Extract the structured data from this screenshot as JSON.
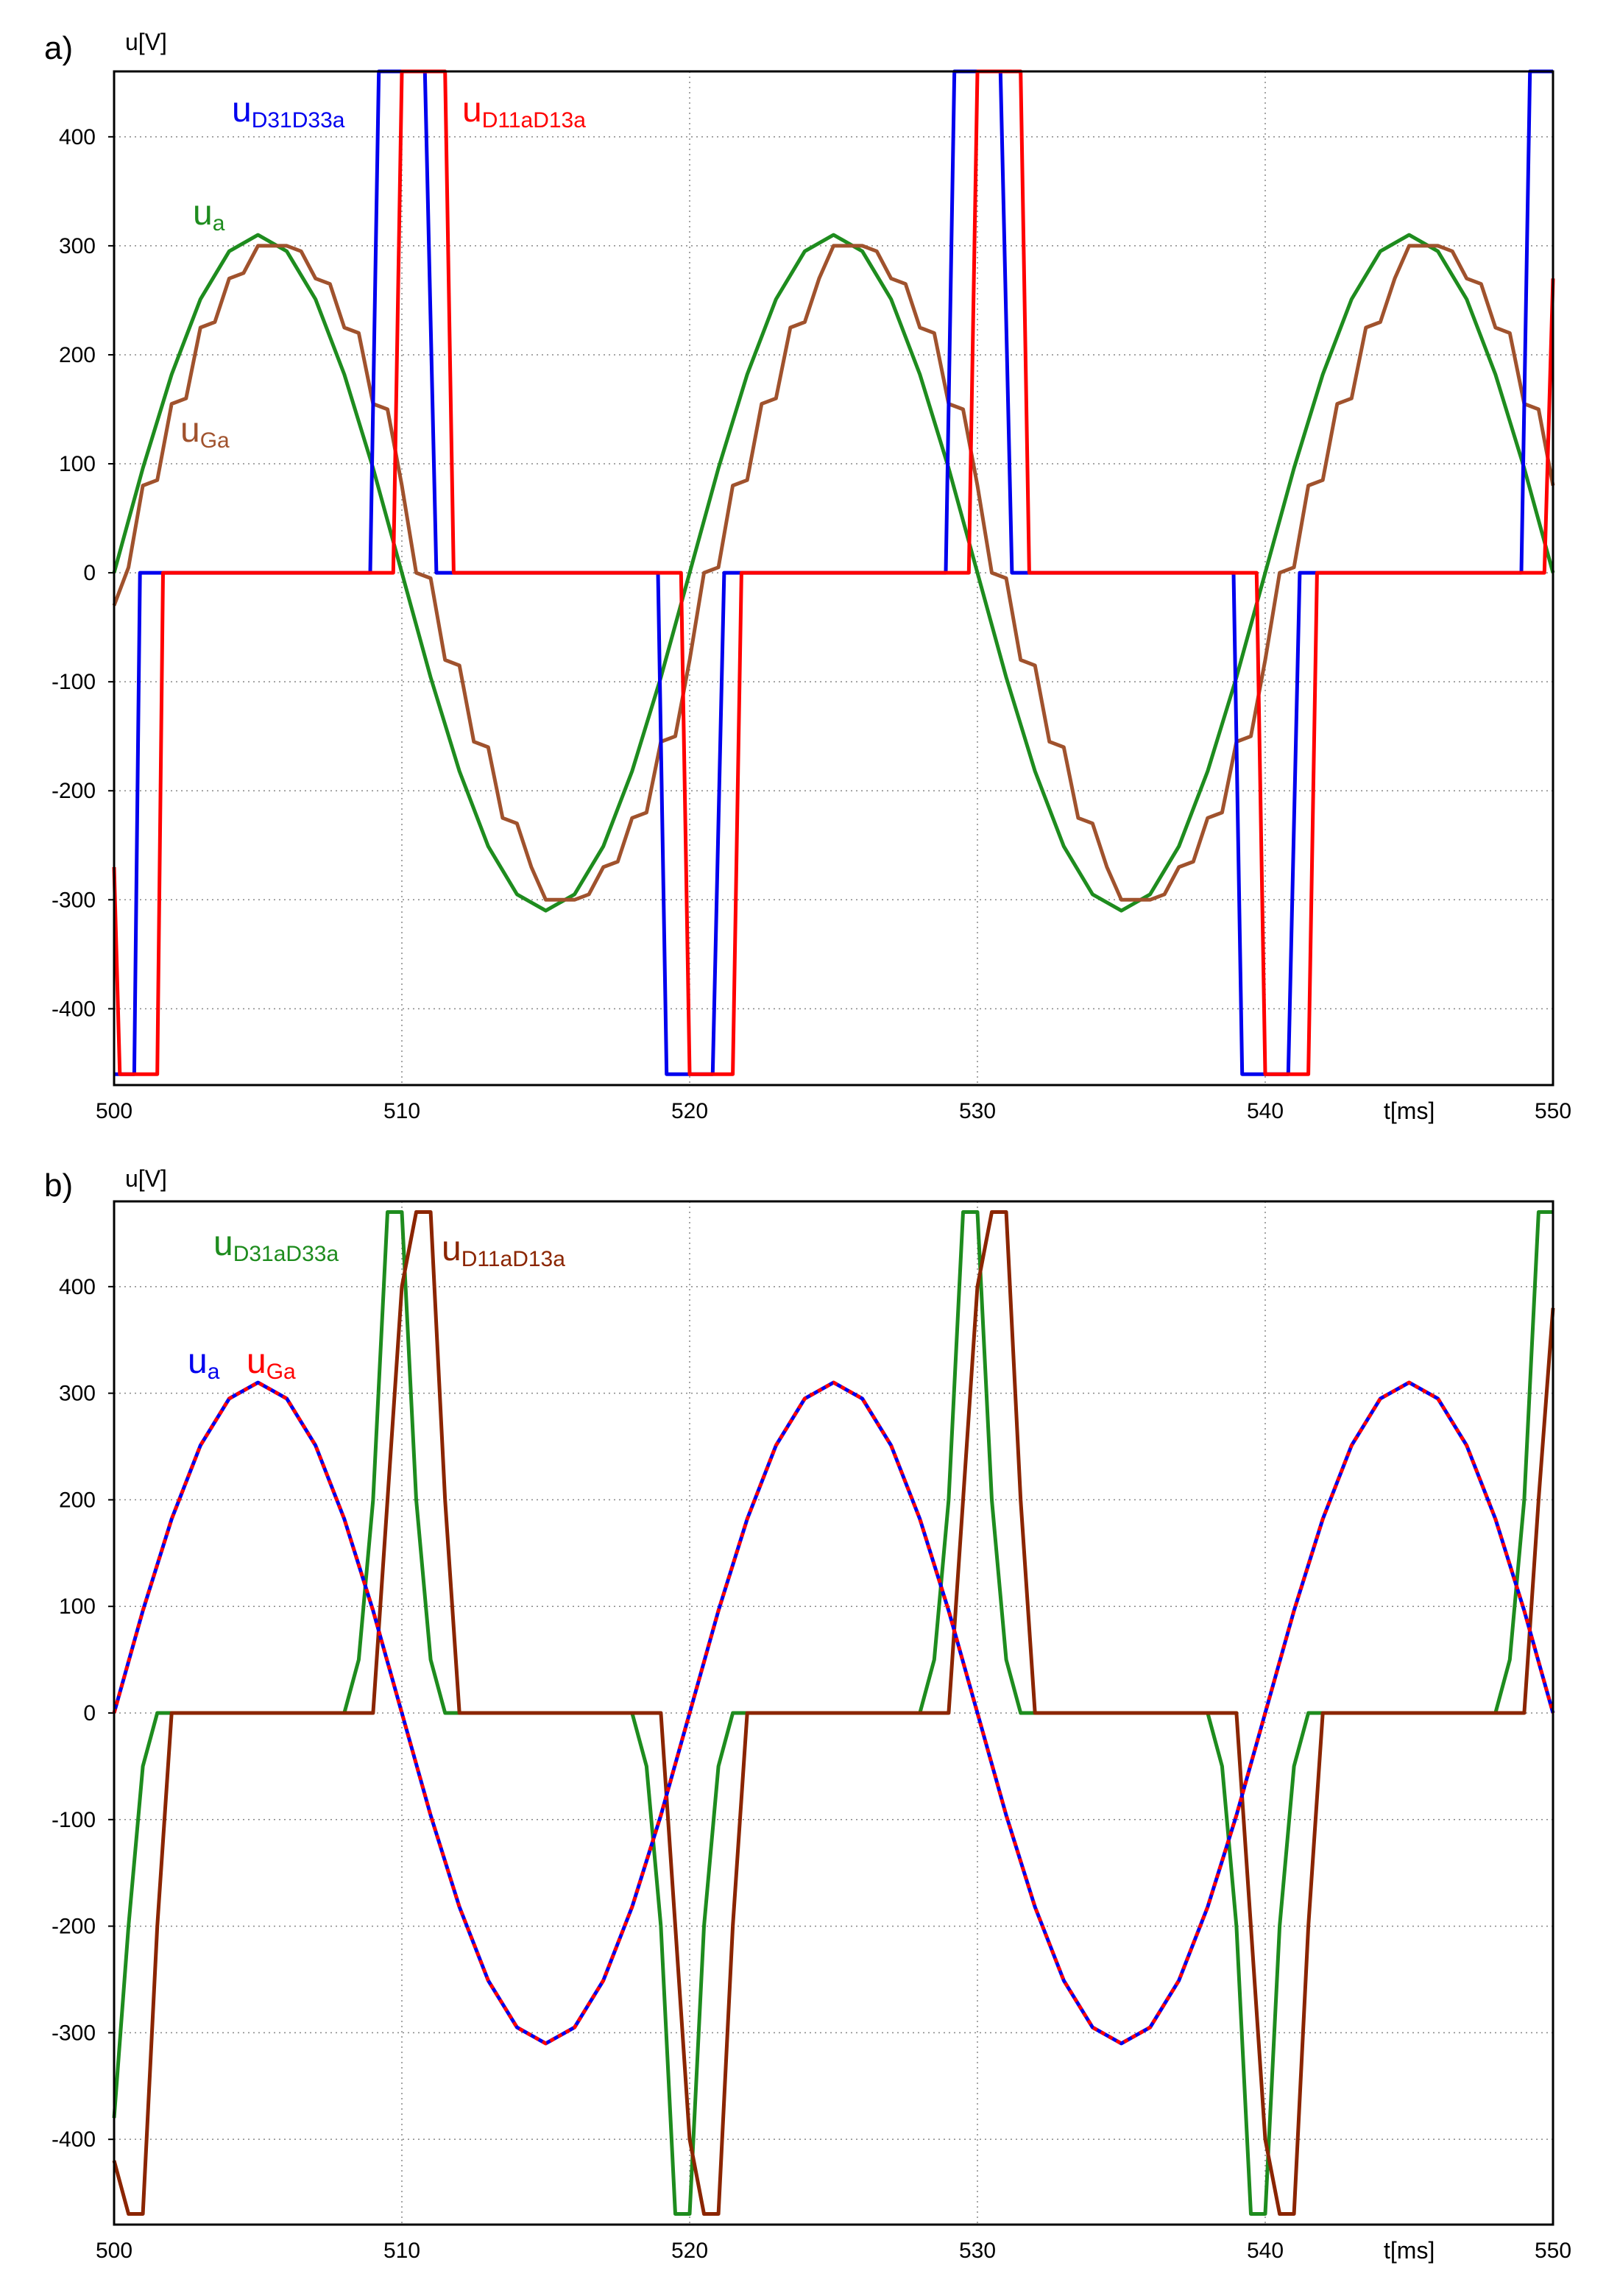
{
  "chart_data": [
    {
      "panel_label": "a)",
      "type": "line",
      "xlabel": "t[ms]",
      "ylabel": "u[V]",
      "xlim": [
        500,
        550
      ],
      "ylim": [
        -470,
        460
      ],
      "xticks": [
        500,
        510,
        520,
        530,
        540,
        550
      ],
      "yticks": [
        -400,
        -300,
        -200,
        -100,
        0,
        100,
        200,
        300,
        400
      ],
      "grid": true,
      "series": [
        {
          "key": "ua",
          "label_main": "u",
          "label_sub": "a",
          "color": "#1e8c1e",
          "description": "sinusoid amplitude 310 V, period 20 ms, zero at 500 ms rising",
          "x": [
            500,
            501,
            502,
            503,
            504,
            505,
            506,
            507,
            508,
            509,
            510,
            511,
            512,
            513,
            514,
            515,
            516,
            517,
            518,
            519,
            520,
            521,
            522,
            523,
            524,
            525,
            526,
            527,
            528,
            529,
            530,
            531,
            532,
            533,
            534,
            535,
            536,
            537,
            538,
            539,
            540,
            541,
            542,
            543,
            544,
            545,
            546,
            547,
            548,
            549,
            550
          ],
          "y": [
            0,
            96,
            182,
            251,
            295,
            310,
            295,
            251,
            182,
            96,
            0,
            -96,
            -182,
            -251,
            -295,
            -310,
            -295,
            -251,
            -182,
            -96,
            0,
            96,
            182,
            251,
            295,
            310,
            295,
            251,
            182,
            96,
            0,
            -96,
            -182,
            -251,
            -295,
            -310,
            -295,
            -251,
            -182,
            -96,
            0,
            96,
            182,
            251,
            295,
            310,
            295,
            251,
            182,
            96,
            0
          ]
        },
        {
          "key": "uGa",
          "label_main": "u",
          "label_sub": "Ga",
          "color": "#a0522d",
          "description": "staircase approximation of the sinusoid",
          "x": [
            500,
            500.5,
            501,
            501.5,
            502,
            502.5,
            503,
            503.5,
            504,
            504.5,
            505,
            505.5,
            506,
            506.5,
            507,
            507.5,
            508,
            508.5,
            509,
            509.5,
            510,
            510.5,
            511,
            511.5,
            512,
            512.5,
            513,
            513.5,
            514,
            514.5,
            515,
            515.5,
            516,
            516.5,
            517,
            517.5,
            518,
            518.5,
            519,
            519.5,
            520,
            520.5,
            521,
            521.5,
            522,
            522.5,
            523,
            523.5,
            524,
            524.5,
            525,
            525.5,
            526,
            526.5,
            527,
            527.5,
            528,
            528.5,
            529,
            529.5,
            530,
            530.5,
            531,
            531.5,
            532,
            532.5,
            533,
            533.5,
            534,
            534.5,
            535,
            535.5,
            536,
            536.5,
            537,
            537.5,
            538,
            538.5,
            539,
            539.5,
            540,
            540.5,
            541,
            541.5,
            542,
            542.5,
            543,
            543.5,
            544,
            544.5,
            545,
            545.5,
            546,
            546.5,
            547,
            547.5,
            548,
            548.5,
            549,
            549.5,
            550
          ],
          "y": [
            -30,
            5,
            80,
            85,
            155,
            160,
            225,
            230,
            270,
            275,
            300,
            300,
            300,
            295,
            270,
            265,
            225,
            220,
            155,
            150,
            80,
            0,
            -5,
            -80,
            -85,
            -155,
            -160,
            -225,
            -230,
            -270,
            -300,
            -300,
            -300,
            -295,
            -270,
            -265,
            -225,
            -220,
            -155,
            -150,
            -80,
            0,
            5,
            80,
            85,
            155,
            160,
            225,
            230,
            270,
            300,
            300,
            300,
            295,
            270,
            265,
            225,
            220,
            155,
            150,
            80,
            0,
            -5,
            -80,
            -85,
            -155,
            -160,
            -225,
            -230,
            -270,
            -300,
            -300,
            -300,
            -295,
            -270,
            -265,
            -225,
            -220,
            -155,
            -150,
            -80,
            0,
            5,
            80,
            85,
            155,
            160,
            225,
            230,
            270,
            300,
            300,
            300,
            295,
            270,
            265,
            225,
            220,
            155,
            150,
            80
          ]
        },
        {
          "key": "uD31D33a",
          "label_main": "u",
          "label_sub": "D31D33a",
          "color": "#0000ee",
          "description": "pulses reaching about +460 V near 509-511 ms and -460 V near 500-501 ms",
          "x": [
            500,
            500.3,
            500.7,
            500.9,
            501.3,
            508.9,
            509.2,
            509.5,
            510.5,
            510.8,
            511.2,
            518.9,
            519.2,
            519.5,
            520.5,
            520.8,
            521.2,
            528.9,
            529.2,
            529.5,
            530.5,
            530.8,
            531.2,
            538.9,
            539.2,
            539.5,
            540.5,
            540.8,
            541.2,
            548.9,
            549.2,
            549.5,
            550
          ],
          "y": [
            -460,
            -460,
            -460,
            0,
            0,
            0,
            460,
            460,
            460,
            460,
            0,
            0,
            -460,
            -460,
            -460,
            -460,
            0,
            0,
            460,
            460,
            460,
            460,
            0,
            0,
            -460,
            -460,
            -460,
            -460,
            0,
            0,
            460,
            460,
            460
          ]
        },
        {
          "key": "uD11aD13a",
          "label_main": "u",
          "label_sub": "D11aD13a",
          "color": "#ff0000",
          "description": "pulses reaching about +460 V near 510-512 ms and -460 V near 500-502 ms",
          "x": [
            500,
            500.2,
            501.5,
            501.7,
            509.7,
            510.0,
            511.5,
            511.8,
            519.7,
            520.0,
            521.5,
            521.8,
            529.7,
            530.0,
            531.5,
            531.8,
            539.7,
            540.0,
            541.5,
            541.8,
            549.7,
            550
          ],
          "y": [
            -270,
            -460,
            -460,
            0,
            0,
            460,
            460,
            0,
            0,
            -460,
            -460,
            0,
            0,
            460,
            460,
            0,
            0,
            -460,
            -460,
            0,
            0,
            270
          ]
        }
      ]
    },
    {
      "panel_label": "b)",
      "type": "line",
      "xlabel": "t[ms]",
      "ylabel": "u[V]",
      "xlim": [
        500,
        550
      ],
      "ylim": [
        -480,
        480
      ],
      "xticks": [
        500,
        510,
        520,
        530,
        540,
        550
      ],
      "yticks": [
        -400,
        -300,
        -200,
        -100,
        0,
        100,
        200,
        300,
        400
      ],
      "grid": true,
      "series": [
        {
          "key": "uD31aD33a",
          "label_main": "u",
          "label_sub": "D31aD33a",
          "color": "#1e8c1e",
          "description": "triangular-ish pulses peaking near +470 V at ~509.5 ms and -470 V at ~500.5 ms",
          "x": [
            500,
            500.5,
            501,
            501.5,
            508,
            508.5,
            509,
            509.5,
            510,
            510.5,
            511,
            511.5,
            518,
            518.5,
            519,
            519.5,
            520,
            520.5,
            521,
            521.5,
            528,
            528.5,
            529,
            529.5,
            530,
            530.5,
            531,
            531.5,
            538,
            538.5,
            539,
            539.5,
            540,
            540.5,
            541,
            541.5,
            548,
            548.5,
            549,
            549.5,
            550
          ],
          "y": [
            -380,
            -200,
            -50,
            0,
            0,
            50,
            200,
            470,
            470,
            200,
            50,
            0,
            0,
            -50,
            -200,
            -470,
            -470,
            -200,
            -50,
            0,
            0,
            50,
            200,
            470,
            470,
            200,
            50,
            0,
            0,
            -50,
            -200,
            -470,
            -470,
            -200,
            -50,
            0,
            0,
            50,
            200,
            470,
            470
          ]
        },
        {
          "key": "uD11aD13a",
          "label_main": "u",
          "label_sub": "D11aD13a",
          "color": "#8b2500",
          "description": "triangular-ish pulses peaking near +470 V at ~510.5 ms and -470 V at ~501 ms",
          "x": [
            500,
            500.5,
            501,
            501.5,
            502,
            509,
            509.5,
            510,
            510.5,
            511,
            511.5,
            512,
            519,
            519.5,
            520,
            520.5,
            521,
            521.5,
            522,
            529,
            529.5,
            530,
            530.5,
            531,
            531.5,
            532,
            539,
            539.5,
            540,
            540.5,
            541,
            541.5,
            542,
            549,
            549.5,
            550
          ],
          "y": [
            -420,
            -470,
            -470,
            -200,
            0,
            0,
            200,
            400,
            470,
            470,
            200,
            0,
            0,
            -200,
            -400,
            -470,
            -470,
            -200,
            0,
            0,
            200,
            400,
            470,
            470,
            200,
            0,
            0,
            -200,
            -400,
            -470,
            -470,
            -200,
            0,
            0,
            200,
            380
          ]
        },
        {
          "key": "ua",
          "label_main": "u",
          "label_sub": "a",
          "color": "#0000ee",
          "dashed": false,
          "description": "sinusoid amplitude 310 V, period 20 ms",
          "x": [
            500,
            501,
            502,
            503,
            504,
            505,
            506,
            507,
            508,
            509,
            510,
            511,
            512,
            513,
            514,
            515,
            516,
            517,
            518,
            519,
            520,
            521,
            522,
            523,
            524,
            525,
            526,
            527,
            528,
            529,
            530,
            531,
            532,
            533,
            534,
            535,
            536,
            537,
            538,
            539,
            540,
            541,
            542,
            543,
            544,
            545,
            546,
            547,
            548,
            549,
            550
          ],
          "y": [
            0,
            96,
            182,
            251,
            295,
            310,
            295,
            251,
            182,
            96,
            0,
            -96,
            -182,
            -251,
            -295,
            -310,
            -295,
            -251,
            -182,
            -96,
            0,
            96,
            182,
            251,
            295,
            310,
            295,
            251,
            182,
            96,
            0,
            -96,
            -182,
            -251,
            -295,
            -310,
            -295,
            -251,
            -182,
            -96,
            0,
            96,
            182,
            251,
            295,
            310,
            295,
            251,
            182,
            96,
            0
          ]
        },
        {
          "key": "uGa",
          "label_main": "u",
          "label_sub": "Ga",
          "color": "#ff0000",
          "dashed": true,
          "description": "overlays u_a closely (dashed red over blue)",
          "x": [
            500,
            501,
            502,
            503,
            504,
            505,
            506,
            507,
            508,
            509,
            510,
            511,
            512,
            513,
            514,
            515,
            516,
            517,
            518,
            519,
            520,
            521,
            522,
            523,
            524,
            525,
            526,
            527,
            528,
            529,
            530,
            531,
            532,
            533,
            534,
            535,
            536,
            537,
            538,
            539,
            540,
            541,
            542,
            543,
            544,
            545,
            546,
            547,
            548,
            549,
            550
          ],
          "y": [
            0,
            96,
            182,
            251,
            295,
            310,
            295,
            251,
            182,
            96,
            0,
            -96,
            -182,
            -251,
            -295,
            -310,
            -295,
            -251,
            -182,
            -96,
            0,
            96,
            182,
            251,
            295,
            310,
            295,
            251,
            182,
            96,
            0,
            -96,
            -182,
            -251,
            -295,
            -310,
            -295,
            -251,
            -182,
            -96,
            0,
            96,
            182,
            251,
            295,
            310,
            295,
            251,
            182,
            96,
            0
          ]
        }
      ]
    }
  ]
}
